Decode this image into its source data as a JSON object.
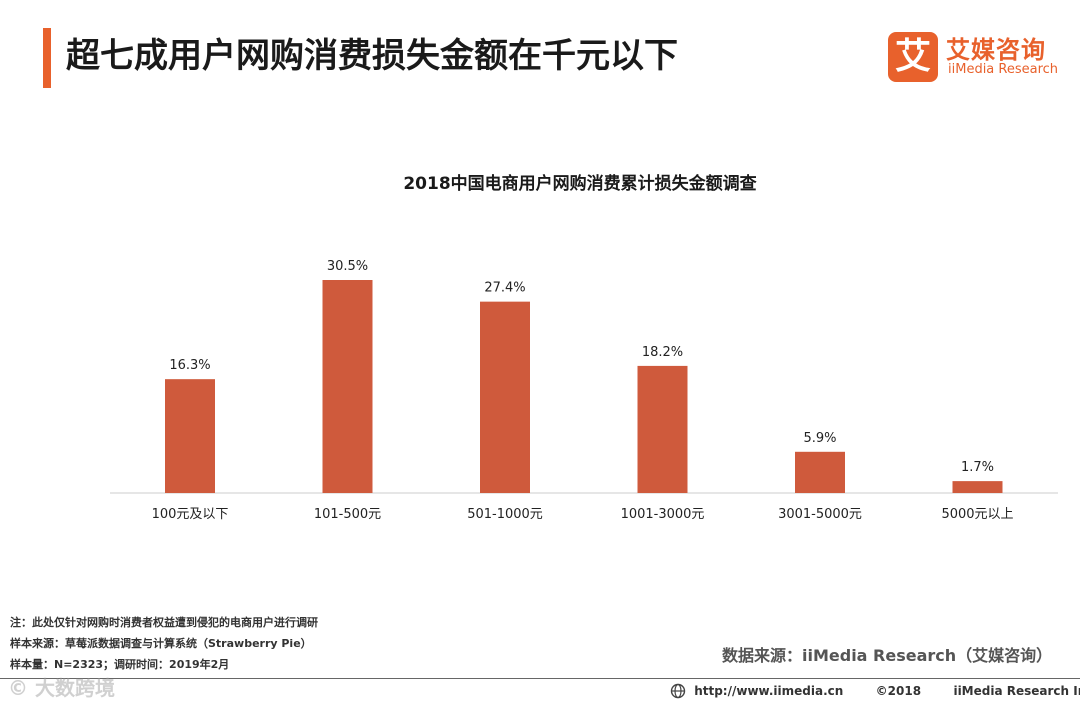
{
  "header": {
    "title": "超七成用户网购消费损失金额在千元以下",
    "accent_color": "#e8612c"
  },
  "logo": {
    "mark": "艾",
    "cn": "艾媒咨询",
    "en": "iiMedia Research"
  },
  "chart_data": {
    "type": "bar",
    "title": "2018中国电商用户网购消费累计损失金额调查",
    "categories": [
      "100元及以下",
      "101-500元",
      "501-1000元",
      "1001-3000元",
      "3001-5000元",
      "5000元以上"
    ],
    "values": [
      16.3,
      30.5,
      27.4,
      18.2,
      5.9,
      1.7
    ],
    "value_labels": [
      "16.3%",
      "30.5%",
      "27.4%",
      "18.2%",
      "5.9%",
      "1.7%"
    ],
    "unit": "%",
    "ylim": [
      0,
      40
    ],
    "bar_color": "#cf5a3c",
    "grid": false,
    "xlabel": "",
    "ylabel": ""
  },
  "notes": [
    "注：此处仅针对网购时消费者权益遭到侵犯的电商用户进行调研",
    "样本来源：草莓派数据调查与计算系统（Strawberry  Pie）",
    "样本量：N=2323；调研时间：2019年2月"
  ],
  "source": "数据来源：iiMedia Research（艾媒咨询）",
  "footer": {
    "url": "http://www.iimedia.cn",
    "copyright": "©2018",
    "company": "iiMedia Research  Inc"
  },
  "watermark": "© 大数跨境"
}
